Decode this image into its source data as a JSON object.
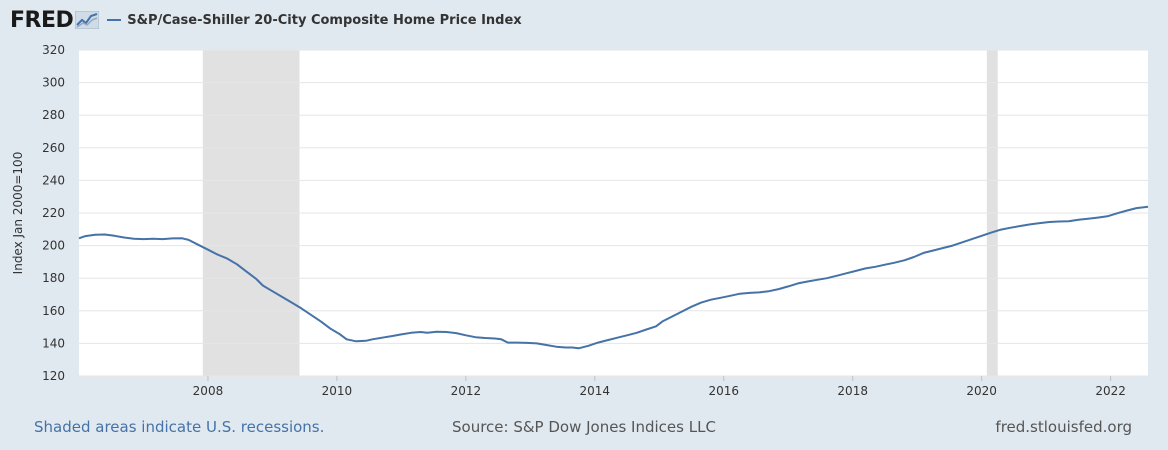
{
  "header": {
    "logo_text": "FRED",
    "logo_icon": "line-chart-icon",
    "series_legend": "S&P/Case-Shiller 20-City Composite Home Price Index"
  },
  "footer": {
    "recession_note": "Shaded areas indicate U.S. recessions.",
    "source": "Source: S&P Dow Jones Indices LLC",
    "site": "fred.stlouisfed.org"
  },
  "colors": {
    "background": "#e1e9f0",
    "plot_background": "#ffffff",
    "series": "#4572a7",
    "recession": "#e1e1e1",
    "grid": "#e6e6e6"
  },
  "chart_data": {
    "type": "line",
    "title": "",
    "xlabel": "",
    "ylabel": "Index Jan 2000=100",
    "xlim": [
      2006.0,
      2022.58
    ],
    "ylim": [
      120,
      320
    ],
    "yticks": [
      120,
      140,
      160,
      180,
      200,
      220,
      240,
      260,
      280,
      300,
      320
    ],
    "xticks": [
      2008,
      2010,
      2012,
      2014,
      2016,
      2018,
      2020,
      2022
    ],
    "grid": true,
    "legend_position": "top-left",
    "recessions": [
      [
        2007.92,
        2009.42
      ],
      [
        2020.08,
        2020.25
      ]
    ],
    "series": [
      {
        "name": "S&P/Case-Shiller 20-City Composite Home Price Index",
        "points": [
          [
            2006.0,
            204.5
          ],
          [
            2006.1,
            205.8
          ],
          [
            2006.25,
            206.7
          ],
          [
            2006.4,
            206.8
          ],
          [
            2006.55,
            206.0
          ],
          [
            2006.7,
            205.0
          ],
          [
            2006.85,
            204.2
          ],
          [
            2007.0,
            204.0
          ],
          [
            2007.15,
            204.2
          ],
          [
            2007.3,
            204.0
          ],
          [
            2007.45,
            204.4
          ],
          [
            2007.6,
            204.5
          ],
          [
            2007.7,
            203.5
          ],
          [
            2007.85,
            200.5
          ],
          [
            2008.0,
            197.5
          ],
          [
            2008.15,
            194.5
          ],
          [
            2008.3,
            192.0
          ],
          [
            2008.45,
            188.5
          ],
          [
            2008.6,
            184.0
          ],
          [
            2008.75,
            179.5
          ],
          [
            2008.85,
            175.5
          ],
          [
            2009.0,
            172.0
          ],
          [
            2009.15,
            168.5
          ],
          [
            2009.3,
            165.0
          ],
          [
            2009.45,
            161.5
          ],
          [
            2009.6,
            157.5
          ],
          [
            2009.75,
            153.5
          ],
          [
            2009.9,
            149.0
          ],
          [
            2010.05,
            145.5
          ],
          [
            2010.15,
            142.5
          ],
          [
            2010.3,
            141.3
          ],
          [
            2010.45,
            141.6
          ],
          [
            2010.55,
            142.5
          ],
          [
            2010.7,
            143.5
          ],
          [
            2010.85,
            144.5
          ],
          [
            2011.0,
            145.5
          ],
          [
            2011.15,
            146.5
          ],
          [
            2011.3,
            147.0
          ],
          [
            2011.4,
            146.5
          ],
          [
            2011.55,
            147.2
          ],
          [
            2011.7,
            147.0
          ],
          [
            2011.85,
            146.3
          ],
          [
            2012.0,
            145.0
          ],
          [
            2012.15,
            143.8
          ],
          [
            2012.3,
            143.3
          ],
          [
            2012.45,
            143.0
          ],
          [
            2012.55,
            142.5
          ],
          [
            2012.65,
            140.5
          ],
          [
            2012.8,
            140.5
          ],
          [
            2012.95,
            140.3
          ],
          [
            2013.1,
            140.0
          ],
          [
            2013.25,
            139.0
          ],
          [
            2013.4,
            138.0
          ],
          [
            2013.55,
            137.5
          ],
          [
            2013.65,
            137.5
          ],
          [
            2013.75,
            137.0
          ],
          [
            2013.9,
            138.5
          ],
          [
            2014.05,
            140.5
          ],
          [
            2014.2,
            142.0
          ],
          [
            2014.35,
            143.5
          ],
          [
            2014.5,
            145.0
          ],
          [
            2014.65,
            146.5
          ],
          [
            2014.8,
            148.5
          ],
          [
            2014.95,
            150.5
          ],
          [
            2015.05,
            153.5
          ],
          [
            2015.2,
            156.5
          ],
          [
            2015.35,
            159.5
          ],
          [
            2015.5,
            162.5
          ],
          [
            2015.65,
            165.0
          ],
          [
            2015.8,
            166.8
          ],
          [
            2015.95,
            168.0
          ],
          [
            2016.1,
            169.2
          ],
          [
            2016.25,
            170.5
          ],
          [
            2016.4,
            171.0
          ],
          [
            2016.55,
            171.3
          ],
          [
            2016.7,
            172.0
          ],
          [
            2016.85,
            173.3
          ],
          [
            2017.0,
            175.0
          ],
          [
            2017.15,
            176.8
          ],
          [
            2017.3,
            178.0
          ],
          [
            2017.45,
            179.0
          ],
          [
            2017.6,
            180.0
          ],
          [
            2017.75,
            181.5
          ],
          [
            2017.9,
            183.0
          ],
          [
            2018.05,
            184.5
          ],
          [
            2018.2,
            186.0
          ],
          [
            2018.35,
            187.0
          ],
          [
            2018.5,
            188.3
          ],
          [
            2018.65,
            189.5
          ],
          [
            2018.8,
            191.0
          ],
          [
            2018.95,
            193.0
          ],
          [
            2019.1,
            195.5
          ],
          [
            2019.25,
            197.0
          ],
          [
            2019.4,
            198.5
          ],
          [
            2019.55,
            200.0
          ],
          [
            2019.7,
            202.0
          ],
          [
            2019.85,
            204.0
          ],
          [
            2020.0,
            206.0
          ],
          [
            2020.15,
            208.0
          ],
          [
            2020.3,
            209.8
          ],
          [
            2020.45,
            211.0
          ],
          [
            2020.6,
            212.0
          ],
          [
            2020.75,
            213.0
          ],
          [
            2020.9,
            213.8
          ],
          [
            2021.05,
            214.5
          ],
          [
            2021.2,
            214.8
          ],
          [
            2021.35,
            215.0
          ],
          [
            2021.5,
            215.8
          ],
          [
            2021.65,
            216.5
          ],
          [
            2021.8,
            217.2
          ],
          [
            2021.95,
            218.0
          ],
          [
            2022.1,
            219.8
          ],
          [
            2022.25,
            221.5
          ],
          [
            2022.4,
            223.0
          ],
          [
            2022.58,
            223.8
          ]
        ]
      }
    ]
  }
}
